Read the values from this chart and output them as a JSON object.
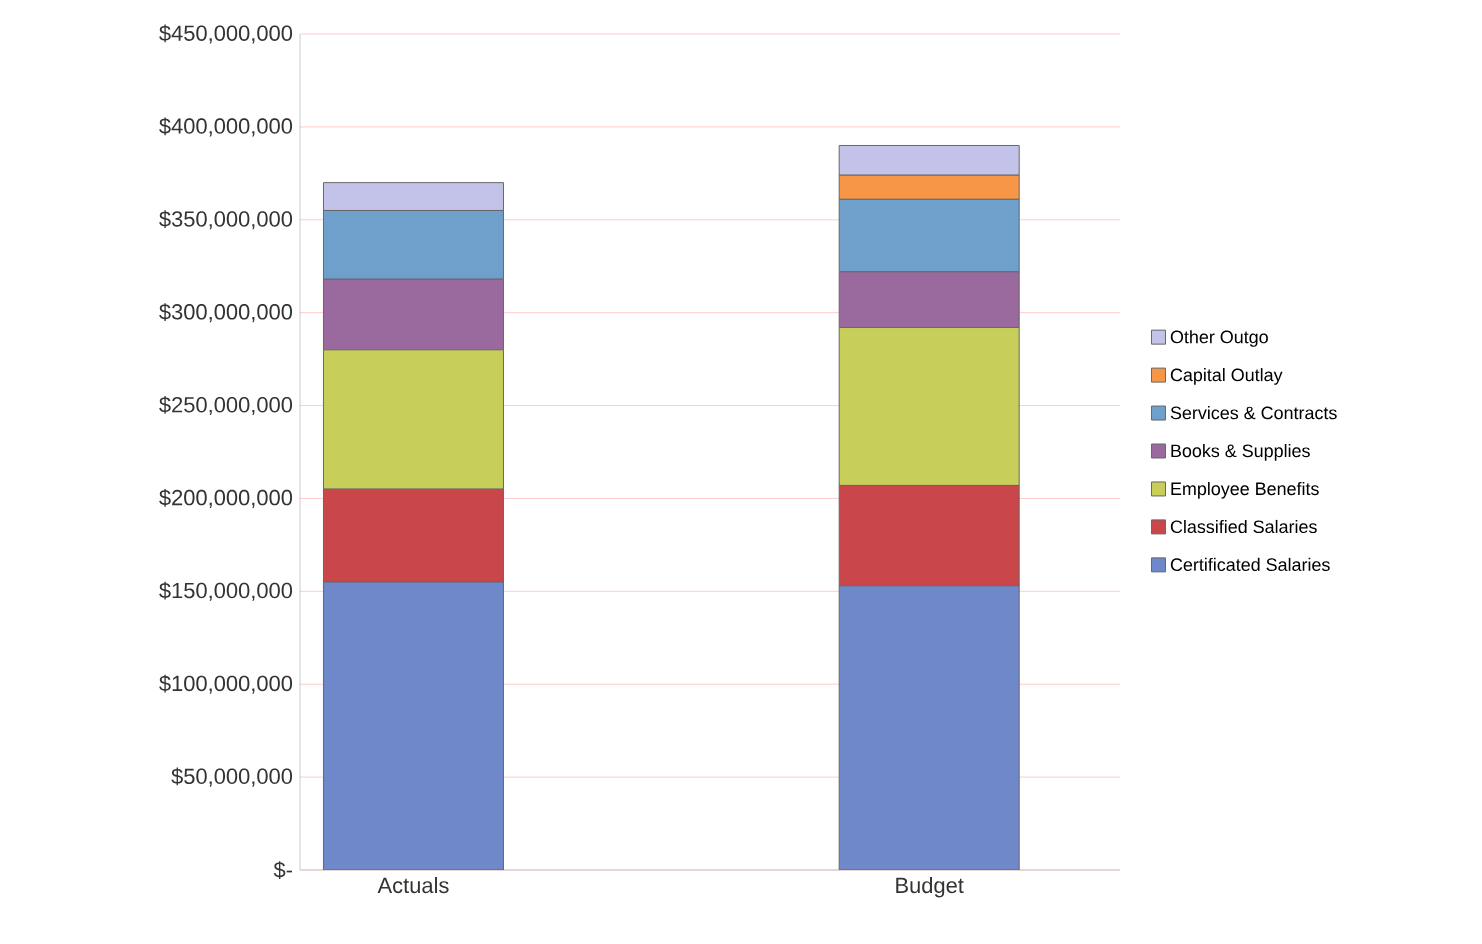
{
  "chart_data": {
    "type": "bar",
    "stacked": true,
    "categories": [
      "Actuals",
      "Budget"
    ],
    "series": [
      {
        "name": "Certificated Salaries",
        "color": "#6e88c9",
        "values": [
          155000000,
          153000000
        ]
      },
      {
        "name": "Classified Salaries",
        "color": "#c9474b",
        "values": [
          50000000,
          54000000
        ]
      },
      {
        "name": "Employee Benefits",
        "color": "#c7cf5a",
        "values": [
          75000000,
          85000000
        ]
      },
      {
        "name": "Books & Supplies",
        "color": "#9a6a9e",
        "values": [
          38000000,
          30000000
        ]
      },
      {
        "name": "Services & Contracts",
        "color": "#6fa0cc",
        "values": [
          37000000,
          39000000
        ]
      },
      {
        "name": "Capital Outlay",
        "color": "#f79646",
        "values": [
          0,
          13000000
        ]
      },
      {
        "name": "Other Outgo",
        "color": "#c3c3ea",
        "values": [
          15000000,
          16000000
        ]
      }
    ],
    "ylim": [
      0,
      450000000
    ],
    "yticks": [
      {
        "value": 0,
        "label": "$-"
      },
      {
        "value": 50000000,
        "label": "$50,000,000"
      },
      {
        "value": 100000000,
        "label": "$100,000,000"
      },
      {
        "value": 150000000,
        "label": "$150,000,000"
      },
      {
        "value": 200000000,
        "label": "$200,000,000"
      },
      {
        "value": 250000000,
        "label": "$250,000,000"
      },
      {
        "value": 300000000,
        "label": "$300,000,000"
      },
      {
        "value": 350000000,
        "label": "$350,000,000"
      },
      {
        "value": 400000000,
        "label": "$400,000,000"
      },
      {
        "value": 450000000,
        "label": "$450,000,000"
      }
    ],
    "grid": "y",
    "legend": "right"
  }
}
